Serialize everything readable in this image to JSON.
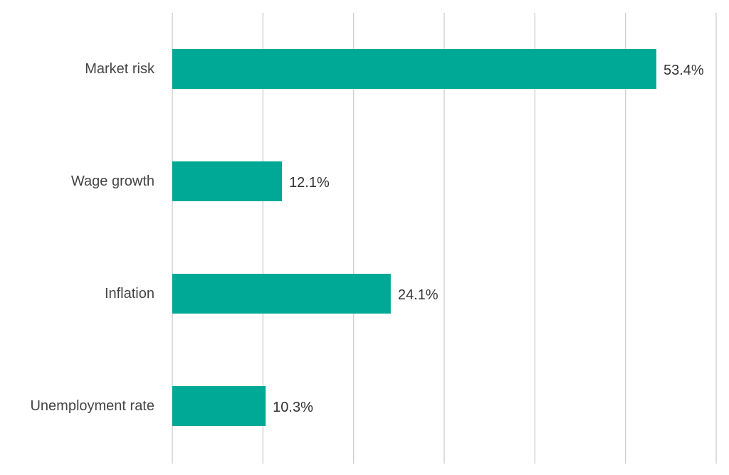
{
  "chart_data": {
    "type": "bar",
    "orientation": "horizontal",
    "title": "",
    "xlabel": "",
    "ylabel": "",
    "categories": [
      "Market risk",
      "Wage growth",
      "Inflation",
      "Unemployment rate"
    ],
    "values": [
      53.4,
      12.1,
      24.1,
      10.3
    ],
    "value_labels": [
      "53.4%",
      "12.1%",
      "24.1%",
      "10.3%"
    ],
    "xlim": [
      0,
      60
    ],
    "grid": true,
    "legend": "none",
    "bar_color": "#00a896",
    "grid_color": "#d0d0d0"
  }
}
